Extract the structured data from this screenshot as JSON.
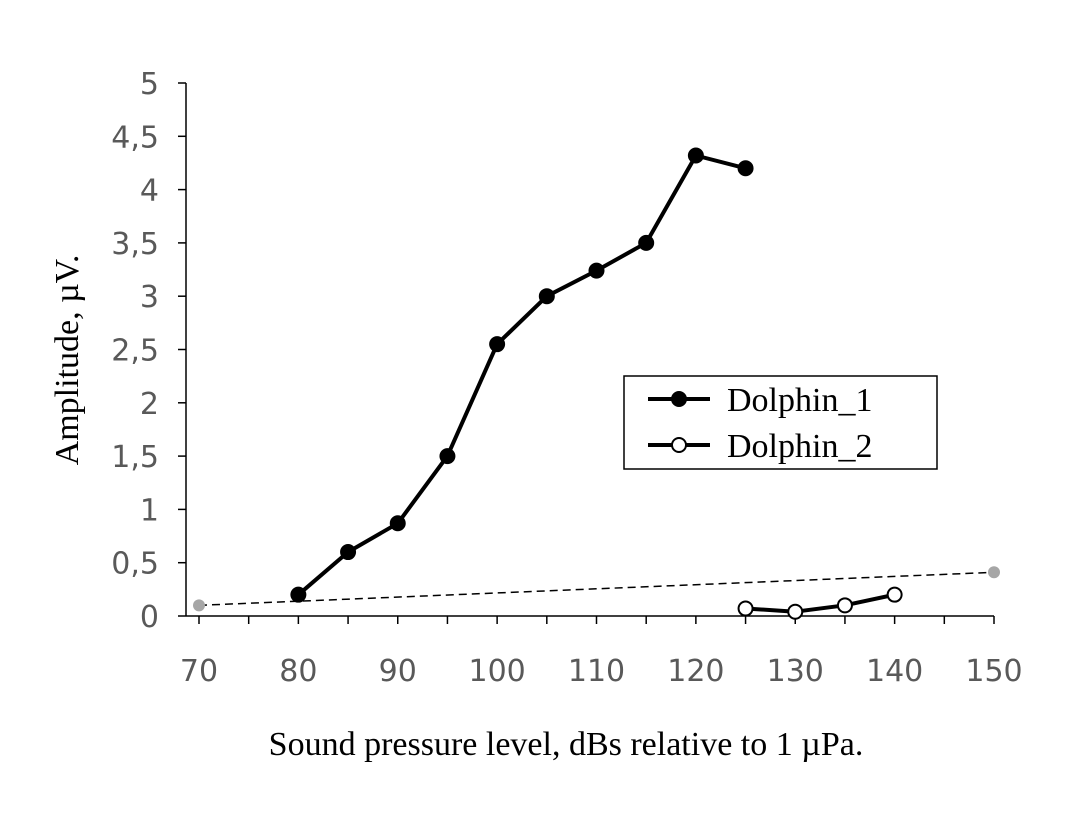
{
  "chart_data": {
    "type": "line",
    "xlabel": "Sound pressure level, dBs relative to 1 µPa.",
    "ylabel": "Amplitude, µV.",
    "xlim": [
      70,
      150
    ],
    "ylim": [
      0,
      5
    ],
    "x_ticks": [
      "70",
      "80",
      "90",
      "100",
      "110",
      "120",
      "130",
      "140",
      "150"
    ],
    "y_ticks": [
      "0",
      "0,5",
      "1",
      "1,5",
      "2",
      "2,5",
      "3",
      "3,5",
      "4",
      "4,5",
      "5"
    ],
    "x_minor_step": 5,
    "grid": false,
    "legend_position": "right-middle",
    "series": [
      {
        "name": "Dolphin_1",
        "marker": "filled-circle",
        "color": "#000000",
        "x": [
          80,
          85,
          90,
          95,
          100,
          105,
          110,
          115,
          120,
          125
        ],
        "y": [
          0.2,
          0.6,
          0.87,
          1.5,
          2.55,
          3.0,
          3.24,
          3.5,
          4.32,
          4.2
        ]
      },
      {
        "name": "Dolphin_2",
        "marker": "open-circle",
        "color": "#000000",
        "x": [
          125,
          130,
          135,
          140
        ],
        "y": [
          0.07,
          0.04,
          0.1,
          0.2
        ]
      }
    ],
    "reference_line": {
      "style": "dashed",
      "color": "#000000",
      "endpoint_color": "#a6a6a6",
      "x": [
        70,
        150
      ],
      "y": [
        0.1,
        0.41
      ]
    }
  }
}
